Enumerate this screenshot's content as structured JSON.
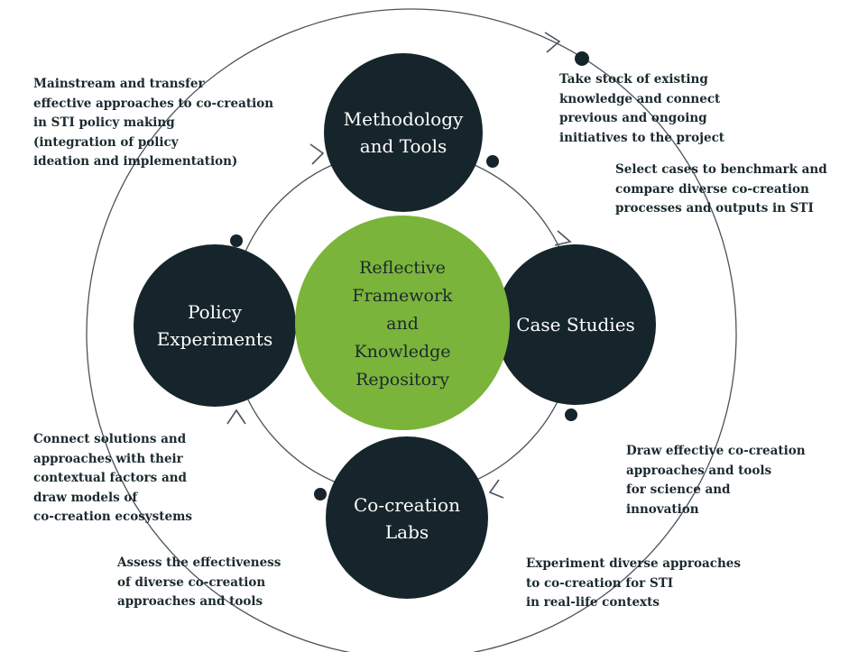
{
  "colors": {
    "node_fill": "#16252b",
    "center_fill": "#7bb43a",
    "line": "#4a5459",
    "text": "#1b2a2f"
  },
  "center": {
    "lines": [
      "Reflective",
      "Framework",
      "and",
      "Knowledge",
      "Repository"
    ]
  },
  "nodes": {
    "methodology": {
      "lines": [
        "Methodology",
        "and Tools"
      ]
    },
    "case_studies": {
      "lines": [
        "Case Studies"
      ]
    },
    "colabs": {
      "lines": [
        "Co-creation",
        "Labs"
      ]
    },
    "policy": {
      "lines": [
        "Policy",
        "Experiments"
      ]
    }
  },
  "annotations": {
    "top_left": {
      "lines": [
        "Mainstream and transfer",
        "effective approaches to co-creation",
        "in STI policy making",
        "(integration of policy",
        "ideation and implementation)"
      ]
    },
    "top_right": {
      "lines": [
        "Take stock of existing",
        "knowledge and connect",
        "previous and ongoing",
        "initiatives to the project"
      ]
    },
    "right_upper": {
      "lines": [
        "Select cases to benchmark and",
        "compare diverse co-creation",
        "processes and outputs in STI"
      ]
    },
    "right_lower": {
      "lines": [
        "Draw effective co-creation",
        "approaches and tools",
        "for science and",
        "innovation"
      ]
    },
    "bottom_right": {
      "lines": [
        "Experiment diverse approaches",
        "to co-creation for STI",
        "in real-life contexts"
      ]
    },
    "bottom_left": {
      "lines": [
        "Assess the effectiveness",
        "of diverse co-creation",
        "approaches and tools"
      ]
    },
    "left_lower": {
      "lines": [
        "Connect solutions and",
        "approaches with their",
        "contextual factors and",
        "draw models of",
        "co-creation ecosystems"
      ]
    }
  }
}
